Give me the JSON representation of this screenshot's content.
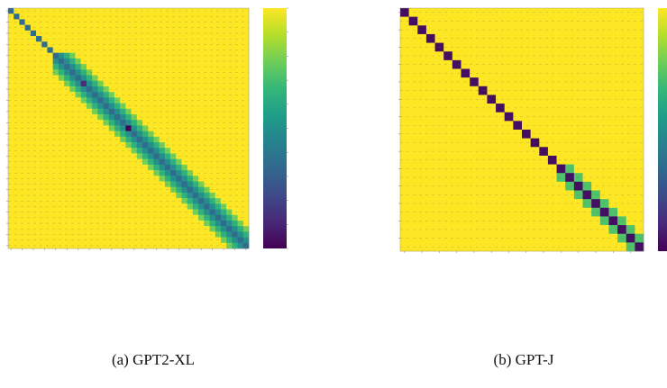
{
  "colors": {
    "viridis": [
      "#440154",
      "#482878",
      "#3e4a89",
      "#31688e",
      "#26828e",
      "#1f9e89",
      "#35b779",
      "#6ece58",
      "#b5de2b",
      "#fde725"
    ],
    "grid": "#5a5a5a"
  },
  "chart_data": [
    {
      "type": "heatmap",
      "size": 43,
      "colormap": "viridis",
      "value_range": [
        0,
        1
      ],
      "diagonal_value": 0.35,
      "off_diagonal_value": 1.0,
      "band_halfwidth": 3.5,
      "band_min_value": 0.5,
      "band_start_index": 8,
      "dark_cells": [
        [
          21,
          21,
          0.0
        ],
        [
          13,
          13,
          0.12
        ]
      ],
      "caption": "(a) GPT2-XL"
    },
    {
      "type": "heatmap",
      "size": 28,
      "colormap": "viridis",
      "value_range": [
        0,
        1
      ],
      "diagonal_value": 0.04,
      "off_diagonal_value": 1.0,
      "band_halfwidth": 1.6,
      "band_min_value": 0.72,
      "band_start_index": 18,
      "dark_cells": [],
      "caption": "(b) GPT-J"
    }
  ]
}
